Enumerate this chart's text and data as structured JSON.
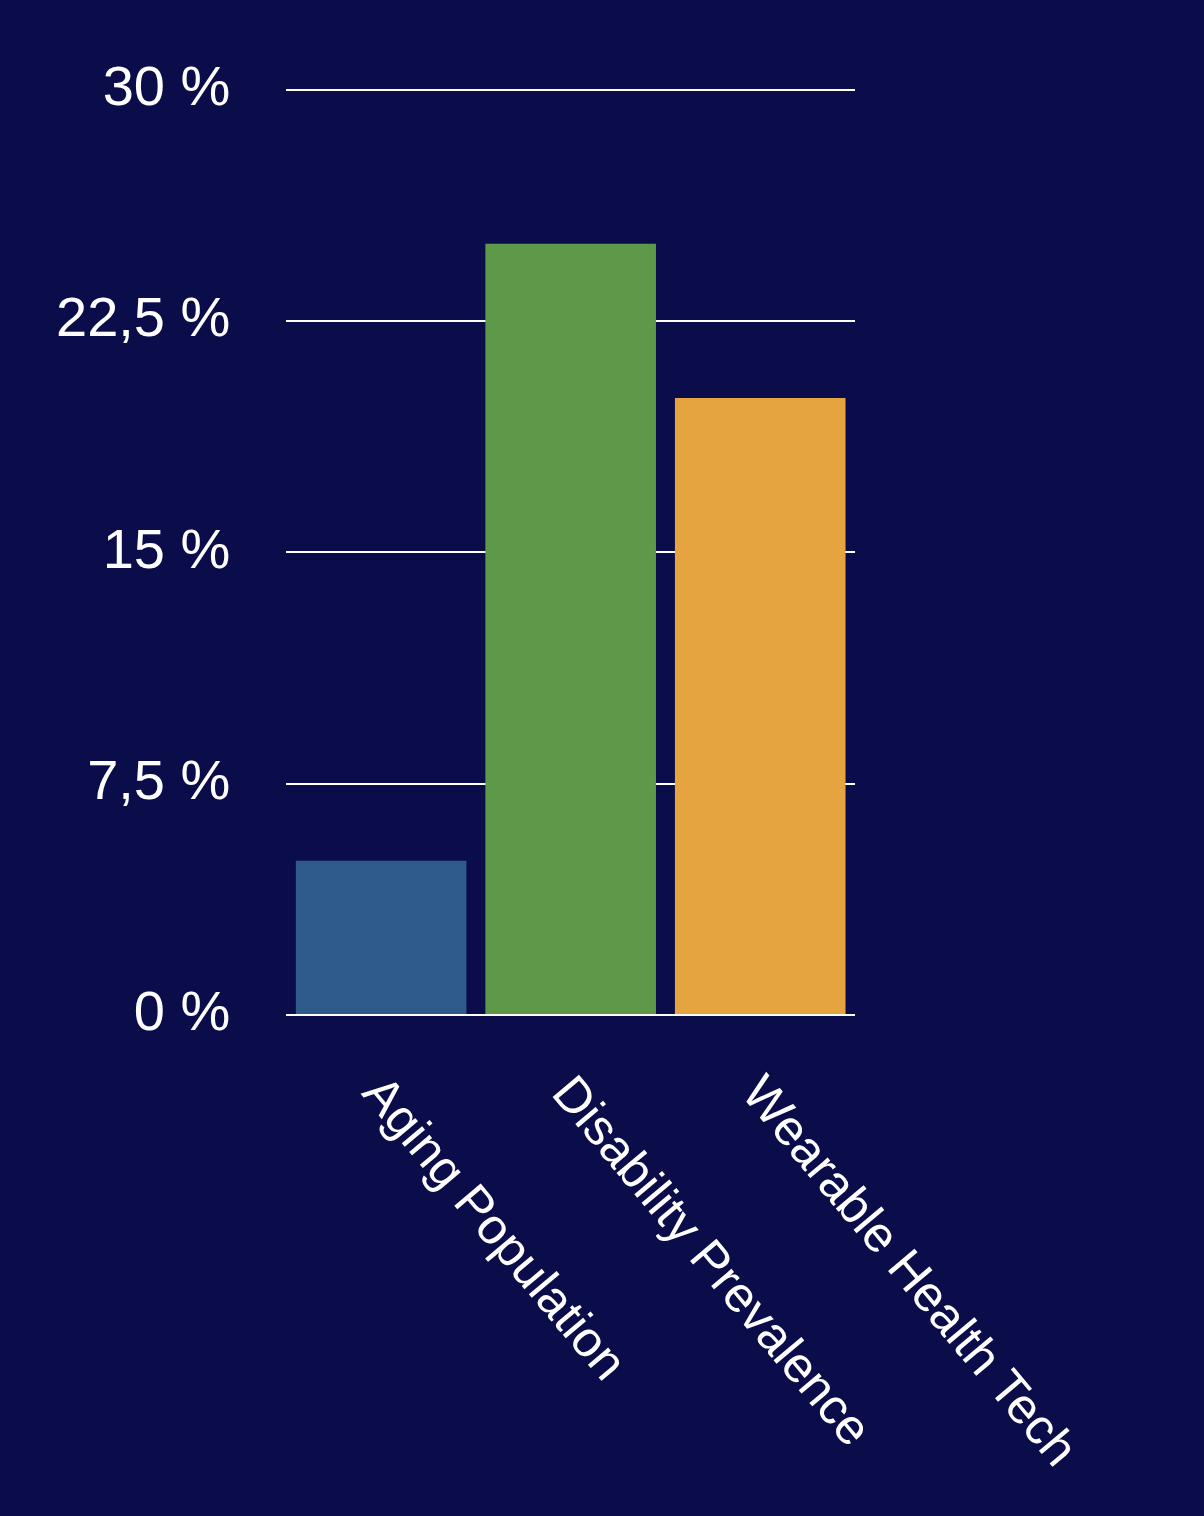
{
  "chart_data": {
    "type": "bar",
    "categories": [
      "Aging Population",
      "Disability Prevalence",
      "Wearable Health Tech"
    ],
    "values": [
      5,
      25,
      20
    ],
    "colors": [
      "#2e5a8c",
      "#5e9849",
      "#e6a440"
    ],
    "ylim": [
      0,
      30
    ],
    "yticks": [
      {
        "value": 0,
        "label": "0 %"
      },
      {
        "value": 7.5,
        "label": "7,5 %"
      },
      {
        "value": 15,
        "label": "15 %"
      },
      {
        "value": 22.5,
        "label": "22,5 %"
      },
      {
        "value": 30,
        "label": "30 %"
      }
    ],
    "grid": "y",
    "legend": false
  }
}
